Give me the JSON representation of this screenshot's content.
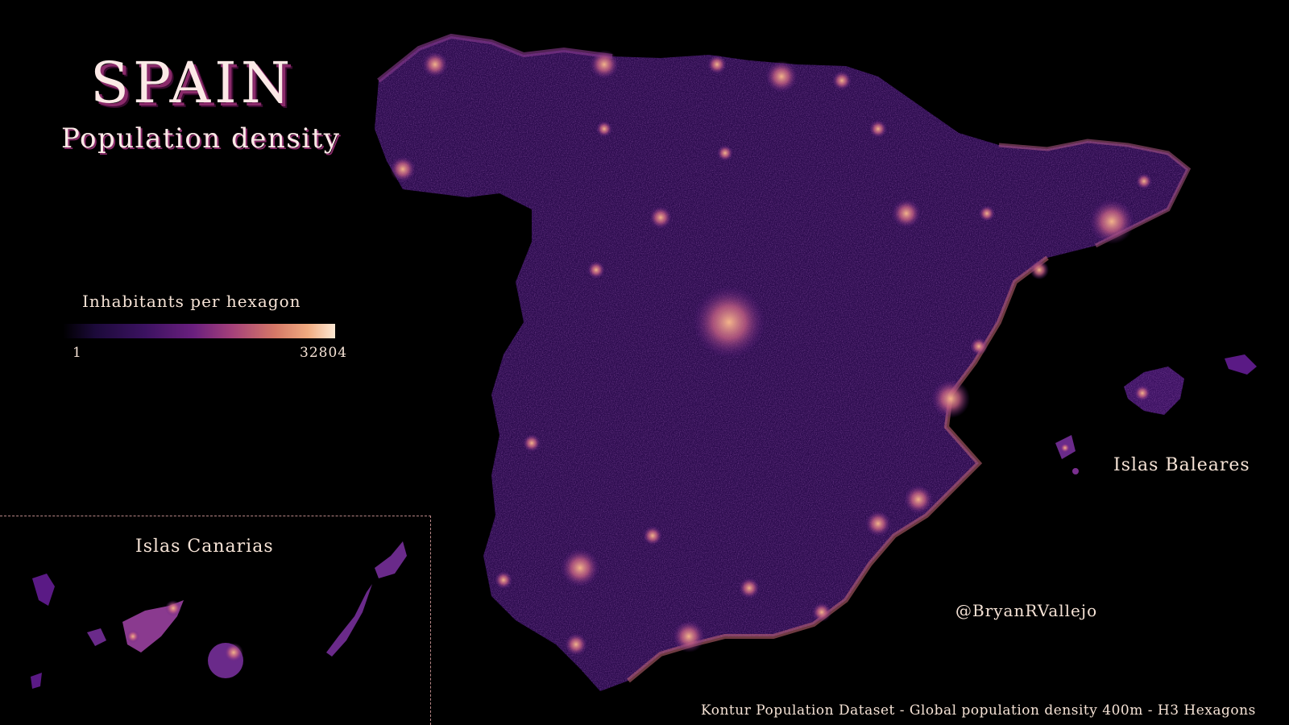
{
  "title": "SPAIN",
  "subtitle": "Population density",
  "legend": {
    "title": "Inhabitants per hexagon",
    "min_label": "1",
    "max_label": "32804",
    "colors": [
      "#000000",
      "#3b1260",
      "#6a1f7e",
      "#a4407a",
      "#d57867",
      "#f1ab80",
      "#fde9d4"
    ]
  },
  "labels": {
    "canarias": "Islas Canarias",
    "baleares": "Islas Baleares"
  },
  "credit": "@BryanRVallejo",
  "source": "Kontur Population Dataset - Global population density 400m - H3 Hexagons",
  "colors": {
    "background": "#000000",
    "land": "#2a0a4a",
    "land_mid": "#5a1a85",
    "urban": "#e3906f",
    "text": "#f6e3d6"
  }
}
